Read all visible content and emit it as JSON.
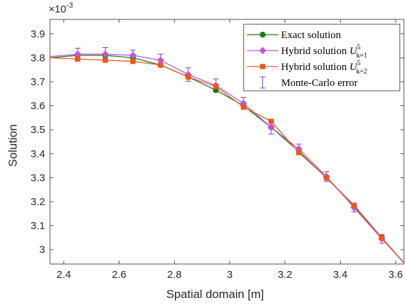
{
  "chart_data": {
    "type": "line",
    "xlabel": "Spatial domain [m]",
    "ylabel": "Solution",
    "xlim": [
      2.35,
      3.63
    ],
    "ylim": [
      2.94,
      3.96
    ],
    "y_scale_label": "×10",
    "y_scale_exponent": "-3",
    "xticks": [
      2.4,
      2.6,
      2.8,
      3.0,
      3.2,
      3.4,
      3.6
    ],
    "xtick_labels": [
      "2.4",
      "2.6",
      "2.8",
      "3",
      "3.2",
      "3.4",
      "3.6"
    ],
    "yticks": [
      3.0,
      3.1,
      3.2,
      3.3,
      3.4,
      3.5,
      3.6,
      3.7,
      3.8,
      3.9
    ],
    "ytick_labels": [
      "3",
      "3.1",
      "3.2",
      "3.3",
      "3.4",
      "3.5",
      "3.6",
      "3.7",
      "3.8",
      "3.9"
    ],
    "grid": false,
    "legend_position": "top-right",
    "series": [
      {
        "name": "Exact solution",
        "color": "#1a7a1a",
        "marker": "circle",
        "x": [
          2.35,
          2.45,
          2.55,
          2.65,
          2.75,
          2.85,
          2.95,
          3.05,
          3.15,
          3.25,
          3.35,
          3.45,
          3.55,
          3.63
        ],
        "y": [
          3.8,
          3.81,
          3.81,
          3.8,
          3.77,
          3.72,
          3.665,
          3.6,
          3.51,
          3.41,
          3.3,
          3.18,
          3.05,
          2.945
        ]
      },
      {
        "name_main": "Hybrid solution",
        "name_math": "U",
        "name_sup": "5",
        "name_sub": "k=1",
        "color": "#c056e0",
        "marker": "diamond",
        "x": [
          2.35,
          2.45,
          2.55,
          2.65,
          2.75,
          2.85,
          2.95,
          3.05,
          3.15,
          3.25,
          3.35,
          3.45,
          3.55,
          3.63
        ],
        "y": [
          3.805,
          3.815,
          3.815,
          3.81,
          3.79,
          3.73,
          3.685,
          3.61,
          3.51,
          3.42,
          3.305,
          3.175,
          3.045,
          2.945
        ],
        "err": [
          0,
          0.025,
          0.028,
          0.022,
          0.025,
          0.028,
          0.027,
          0.025,
          0.028,
          0.02,
          0.02,
          0.018,
          0.018,
          0
        ]
      },
      {
        "name_main": "Hybrid solution",
        "name_math": "U",
        "name_sup": "5",
        "name_sub": "k=2",
        "color": "#e85a1a",
        "marker": "square",
        "x": [
          2.35,
          2.45,
          2.55,
          2.65,
          2.75,
          2.85,
          2.95,
          3.05,
          3.15,
          3.25,
          3.35,
          3.45,
          3.55,
          3.63
        ],
        "y": [
          3.8,
          3.795,
          3.79,
          3.785,
          3.77,
          3.72,
          3.68,
          3.595,
          3.535,
          3.405,
          3.3,
          3.185,
          3.05,
          2.945
        ]
      }
    ],
    "errorbar_legend": "Monte-Carlo error",
    "errorbar_color": "#8a3aa8"
  }
}
